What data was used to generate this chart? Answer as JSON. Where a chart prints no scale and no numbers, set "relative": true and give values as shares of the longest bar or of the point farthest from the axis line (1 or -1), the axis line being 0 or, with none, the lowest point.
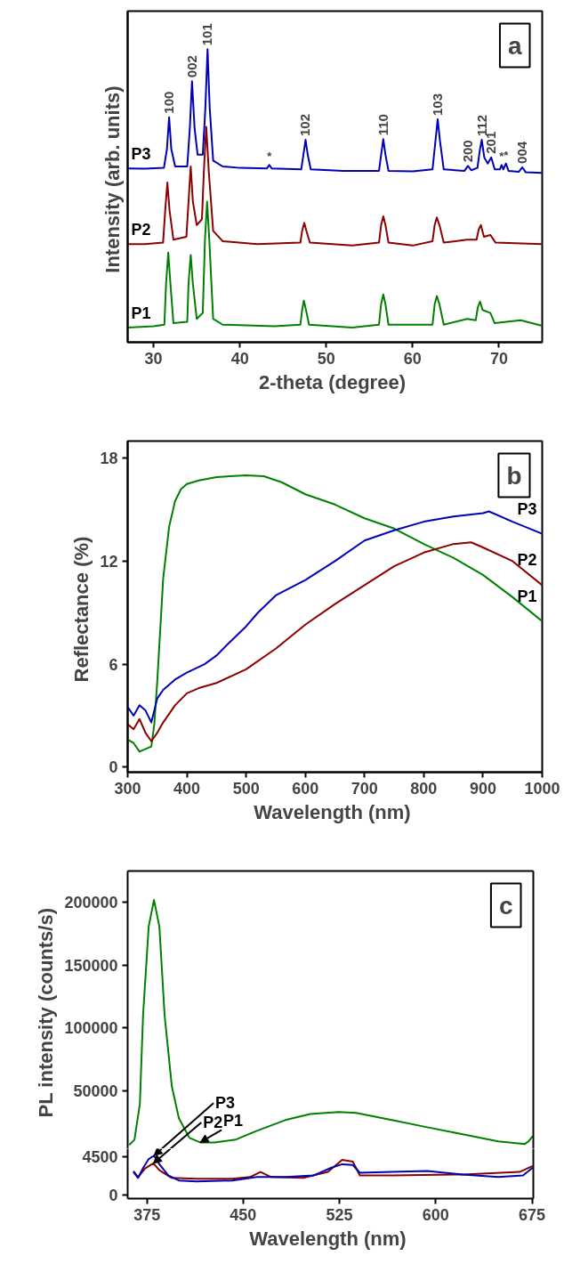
{
  "chart_data": [
    {
      "type": "line",
      "title": "a",
      "xlabel": "2-theta  (degree)",
      "ylabel": "Intensity  (arb. units)",
      "relative": true,
      "tick_labels": "x",
      "xlim": [
        27,
        75
      ],
      "xticks": [
        30,
        40,
        50,
        60,
        70
      ],
      "series": [
        {
          "name": "P1",
          "color": "#008000",
          "x": [
            27,
            30,
            31.25,
            31.45,
            31.7,
            31.95,
            32.3,
            33.9,
            34.05,
            34.3,
            34.55,
            35.0,
            35.7,
            35.95,
            36.2,
            36.45,
            36.9,
            38,
            44,
            47,
            47.2,
            47.4,
            47.65,
            48.0,
            53,
            56.1,
            56.35,
            56.6,
            56.85,
            57.2,
            62.3,
            62.55,
            62.8,
            63.1,
            63.6,
            66.3,
            67.3,
            67.55,
            67.8,
            68.1,
            69.0,
            69.5,
            72.5,
            75
          ],
          "values": [
            0.05,
            0.055,
            0.06,
            0.2,
            0.306,
            0.2,
            0.065,
            0.07,
            0.2,
            0.298,
            0.2,
            0.08,
            0.1,
            0.35,
            0.48,
            0.35,
            0.08,
            0.06,
            0.055,
            0.06,
            0.11,
            0.142,
            0.11,
            0.06,
            0.05,
            0.06,
            0.13,
            0.163,
            0.13,
            0.06,
            0.06,
            0.13,
            0.158,
            0.13,
            0.06,
            0.08,
            0.075,
            0.12,
            0.139,
            0.11,
            0.1,
            0.065,
            0.075,
            0.056
          ]
        },
        {
          "name": "P2",
          "color": "#8b0000",
          "x": [
            27,
            29,
            31.1,
            31.35,
            31.6,
            31.85,
            32.3,
            33.8,
            34.05,
            34.3,
            34.55,
            35.0,
            35.6,
            35.85,
            36.1,
            36.4,
            36.9,
            38,
            42,
            47,
            47.2,
            47.45,
            47.7,
            48.1,
            53,
            56.1,
            56.35,
            56.6,
            56.85,
            57.2,
            60,
            62.3,
            62.55,
            62.8,
            63.1,
            63.6,
            66.3,
            67.4,
            67.65,
            67.9,
            68.25,
            69.0,
            69.6,
            75
          ],
          "values": [
            0.335,
            0.335,
            0.34,
            0.45,
            0.545,
            0.45,
            0.35,
            0.36,
            0.48,
            0.6,
            0.48,
            0.4,
            0.42,
            0.6,
            0.735,
            0.58,
            0.38,
            0.345,
            0.335,
            0.34,
            0.38,
            0.407,
            0.38,
            0.34,
            0.33,
            0.34,
            0.4,
            0.43,
            0.4,
            0.34,
            0.33,
            0.345,
            0.4,
            0.426,
            0.4,
            0.34,
            0.35,
            0.35,
            0.385,
            0.4,
            0.36,
            0.366,
            0.34,
            0.335
          ]
        },
        {
          "name": "P3",
          "color": "#0000b4",
          "x": [
            27,
            29,
            31.2,
            31.55,
            31.8,
            32.05,
            32.5,
            33.9,
            34.2,
            34.45,
            34.75,
            35.1,
            35.7,
            36.0,
            36.25,
            36.5,
            36.9,
            38,
            40,
            43.1,
            43.4,
            43.7,
            47.1,
            47.35,
            47.6,
            47.85,
            48.2,
            52,
            56.1,
            56.35,
            56.6,
            56.85,
            57.2,
            60,
            62.3,
            62.65,
            62.9,
            63.15,
            63.6,
            66.0,
            66.4,
            66.8,
            67.5,
            67.75,
            68.0,
            68.3,
            68.7,
            69.1,
            69.5,
            70.1,
            70.3,
            70.5,
            70.8,
            71.1,
            72.3,
            72.7,
            73.1,
            75
          ],
          "values": [
            0.593,
            0.592,
            0.595,
            0.66,
            0.768,
            0.66,
            0.6,
            0.6,
            0.73,
            0.891,
            0.73,
            0.64,
            0.64,
            0.8,
            1.0,
            0.8,
            0.62,
            0.6,
            0.595,
            0.593,
            0.605,
            0.593,
            0.59,
            0.64,
            0.691,
            0.64,
            0.59,
            0.585,
            0.585,
            0.64,
            0.693,
            0.64,
            0.585,
            0.583,
            0.59,
            0.69,
            0.761,
            0.69,
            0.59,
            0.585,
            0.602,
            0.587,
            0.595,
            0.65,
            0.691,
            0.63,
            0.61,
            0.631,
            0.59,
            0.59,
            0.605,
            0.59,
            0.61,
            0.585,
            0.582,
            0.597,
            0.58,
            0.578
          ]
        }
      ],
      "annotations": [
        {
          "text": "100",
          "x": 31.8,
          "y": 0.768
        },
        {
          "text": "002",
          "x": 34.45,
          "y": 0.891
        },
        {
          "text": "101",
          "x": 36.25,
          "y": 1.0
        },
        {
          "text": "*",
          "x": 43.4,
          "y": 0.605
        },
        {
          "text": "102",
          "x": 47.6,
          "y": 0.691
        },
        {
          "text": "110",
          "x": 56.6,
          "y": 0.693
        },
        {
          "text": "103",
          "x": 62.9,
          "y": 0.761
        },
        {
          "text": "200",
          "x": 66.4,
          "y": 0.602
        },
        {
          "text": "112",
          "x": 68.0,
          "y": 0.691
        },
        {
          "text": "201",
          "x": 69.1,
          "y": 0.631
        },
        {
          "text": "*",
          "x": 70.3,
          "y": 0.605
        },
        {
          "text": "*",
          "x": 70.8,
          "y": 0.61
        },
        {
          "text": "004",
          "x": 72.7,
          "y": 0.597
        }
      ]
    },
    {
      "type": "line",
      "title": "b",
      "xlabel": "Wavelength  (nm)",
      "ylabel": "Reflectance  (%)",
      "xlim": [
        300,
        1000
      ],
      "ylim": [
        -0.3,
        19
      ],
      "xticks": [
        300,
        400,
        500,
        600,
        700,
        800,
        900,
        1000
      ],
      "yticks": [
        0,
        6,
        12,
        18
      ],
      "series": [
        {
          "name": "P1",
          "color": "#008000",
          "x": [
            300,
            310,
            320,
            340,
            345,
            350,
            355,
            360,
            365,
            370,
            380,
            390,
            400,
            420,
            450,
            500,
            530,
            560,
            600,
            650,
            700,
            750,
            800,
            850,
            900,
            950,
            1000
          ],
          "values": [
            1.6,
            1.4,
            0.9,
            1.2,
            2.5,
            5,
            8,
            11,
            12.5,
            14,
            15.5,
            16.2,
            16.5,
            16.7,
            16.9,
            17.0,
            16.95,
            16.6,
            15.9,
            15.3,
            14.5,
            13.9,
            13.0,
            12.2,
            11.2,
            9.9,
            8.5
          ]
        },
        {
          "name": "P2",
          "color": "#8b0000",
          "x": [
            300,
            310,
            320,
            330,
            340,
            350,
            360,
            380,
            400,
            420,
            450,
            500,
            550,
            600,
            650,
            700,
            750,
            800,
            850,
            880,
            900,
            950,
            1000
          ],
          "values": [
            2.5,
            2.2,
            2.8,
            2.0,
            1.5,
            2.0,
            2.6,
            3.6,
            4.3,
            4.6,
            4.9,
            5.7,
            6.9,
            8.3,
            9.5,
            10.6,
            11.7,
            12.5,
            13.0,
            13.1,
            12.8,
            12.0,
            10.6
          ]
        },
        {
          "name": "P3",
          "color": "#0000b4",
          "x": [
            300,
            310,
            320,
            330,
            340,
            350,
            360,
            380,
            400,
            430,
            450,
            470,
            500,
            520,
            550,
            600,
            650,
            700,
            750,
            800,
            850,
            900,
            910,
            950,
            1000
          ],
          "values": [
            3.5,
            3.0,
            3.6,
            3.3,
            2.6,
            4.0,
            4.5,
            5.1,
            5.5,
            6.0,
            6.5,
            7.2,
            8.2,
            9.0,
            10.0,
            10.9,
            12.0,
            13.2,
            13.8,
            14.3,
            14.6,
            14.8,
            14.9,
            14.3,
            13.6
          ]
        }
      ]
    },
    {
      "type": "line",
      "title": "c",
      "ylabel": "PL intensity  (counts/s)",
      "tick_labels": "y",
      "xlim": [
        360,
        676
      ],
      "ylim": [
        4000,
        225000
      ],
      "yticks": [
        50000,
        100000,
        150000,
        200000
      ],
      "series": [
        {
          "name": "P1",
          "color": "#008000",
          "x": [
            361.2,
            365.3,
            369.5,
            372,
            376.4,
            380.5,
            384.7,
            388.8,
            394.4,
            399.9,
            408.2,
            416.5,
            427.5,
            444,
            460.7,
            482.8,
            502.2,
            524.3,
            538,
            565.8,
            593.4,
            621,
            648.7,
            669.4,
            672.2,
            675.5
          ],
          "values": [
            7000,
            11200,
            39500,
            110000,
            181000,
            202000,
            181000,
            110000,
            53700,
            28200,
            12600,
            9000,
            9000,
            11200,
            18300,
            26800,
            31600,
            33300,
            32500,
            26800,
            21100,
            15500,
            9800,
            7800,
            9800,
            14000
          ]
        }
      ]
    },
    {
      "type": "line",
      "xlabel": "Wavelength  (nm)",
      "xlim": [
        360,
        676
      ],
      "ylim": [
        -400,
        5400
      ],
      "xticks": [
        375,
        450,
        525,
        600,
        675
      ],
      "yticks": [
        0,
        4500
      ],
      "series": [
        {
          "name": "P2",
          "color": "#8b0000",
          "x": [
            364.5,
            368.1,
            373.6,
            380,
            384.7,
            394.4,
            413.7,
            441.4,
            455.2,
            463.5,
            471.8,
            496.7,
            516,
            527.1,
            535.4,
            540.9,
            565.8,
            621,
            665.3,
            675.5
          ],
          "values": [
            2800,
            2100,
            3100,
            3700,
            2900,
            2000,
            1900,
            1900,
            2100,
            2700,
            2100,
            2000,
            2700,
            4100,
            3900,
            2300,
            2300,
            2400,
            2700,
            3400
          ]
        },
        {
          "name": "P3",
          "color": "#0000b4",
          "x": [
            364.5,
            368.1,
            372.2,
            376.4,
            380.5,
            384.7,
            391.6,
            399.9,
            413.7,
            441.4,
            460.7,
            482.8,
            505,
            518.8,
            527.1,
            535.4,
            540.9,
            565.8,
            593.4,
            621,
            648.7,
            668,
            675.5
          ],
          "values": [
            2700,
            2000,
            3200,
            4200,
            4600,
            3600,
            2300,
            1700,
            1600,
            1700,
            2100,
            2100,
            2300,
            3200,
            3600,
            3500,
            2600,
            2700,
            2800,
            2400,
            2100,
            2300,
            3200
          ]
        }
      ]
    }
  ]
}
